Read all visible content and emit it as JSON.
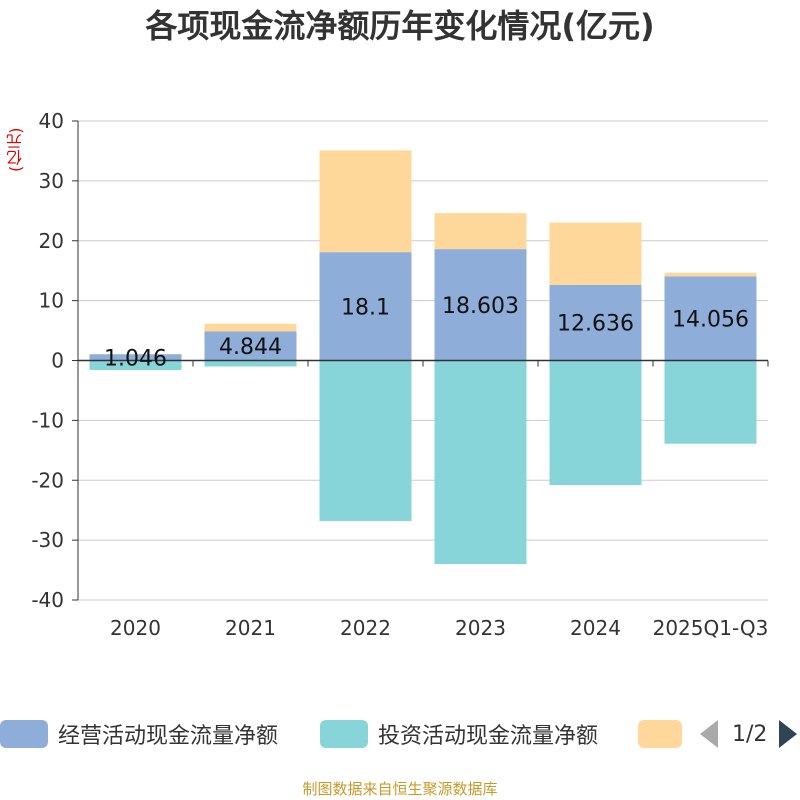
{
  "title": "各项现金流净额历年变化情况(亿元)",
  "unit_label": "(亿元)",
  "footer": "制图数据来自恒生聚源数据库",
  "legend": {
    "items": [
      {
        "label": "经营活动现金流量净额",
        "color": "#8fadd9"
      },
      {
        "label": "投资活动现金流量净额",
        "color": "#87d5d8"
      },
      {
        "label": "",
        "color": "#fdd89a"
      }
    ],
    "page": "1/2"
  },
  "chart_data": {
    "type": "bar",
    "stacked": true,
    "title": "各项现金流净额历年变化情况(亿元)",
    "ylabel": "(亿元)",
    "ylim": [
      -40,
      40
    ],
    "yticks": [
      40,
      30,
      20,
      10,
      0,
      -10,
      -20,
      -30,
      -40
    ],
    "categories": [
      "2020",
      "2021",
      "2022",
      "2023",
      "2024",
      "2025Q1-Q3"
    ],
    "series": [
      {
        "name": "经营活动现金流量净额",
        "color": "#8fadd9",
        "values": [
          1.046,
          4.844,
          18.1,
          18.603,
          12.636,
          14.056
        ],
        "show_labels": true
      },
      {
        "name": "投资活动现金流量净额",
        "color": "#87d5d8",
        "values": [
          -1.6,
          -1.0,
          -26.8,
          -34.0,
          -20.8,
          -13.9
        ],
        "show_labels": false
      },
      {
        "name": "",
        "color": "#fdd89a",
        "values": [
          0.0,
          1.3,
          17.0,
          6.0,
          10.4,
          0.6
        ],
        "show_labels": false
      }
    ]
  }
}
